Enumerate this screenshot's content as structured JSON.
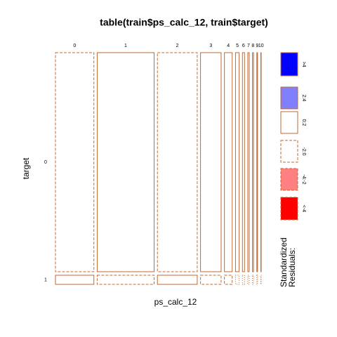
{
  "chart_data": {
    "type": "mosaic",
    "title": "table(train$ps_calc_12, train$target)",
    "x_label": "ps_calc_12",
    "y_label": "target",
    "categories": [
      "0",
      "1",
      "2",
      "3",
      "4",
      "5",
      "6",
      "7",
      "8",
      "9",
      "10"
    ],
    "values": [
      22.2,
      32.9,
      23.0,
      11.9,
      4.5,
      2.1,
      1.2,
      0.8,
      0.6,
      0.4,
      0.2
    ],
    "rows": [
      "0",
      "1"
    ],
    "row_values": [
      96,
      4
    ],
    "color": "#c06a30",
    "cell_borders": [
      [
        "dashed",
        "solid",
        "dashed",
        "solid",
        "solid",
        "solid",
        "solid",
        "solid",
        "solid",
        "solid",
        "solid"
      ],
      [
        "solid",
        "dashed",
        "solid",
        "dashed",
        "dashed",
        "dotted",
        "dotted",
        "dotted",
        "dotted",
        "dotted",
        "dotted"
      ]
    ],
    "legend_title": [
      "Standardized",
      "Residuals:"
    ],
    "legend": [
      {
        "label": ">4",
        "fill": "#0000ff",
        "border": "solid"
      },
      {
        "label": "2:4",
        "fill": "#8080ff",
        "border": "solid"
      },
      {
        "label": "0:2",
        "fill": "#ffffff",
        "border": "solid"
      },
      {
        "label": "-2:0",
        "fill": "#ffffff",
        "border": "dashed"
      },
      {
        "label": "-4:-2",
        "fill": "#ff8080",
        "border": "dashed"
      },
      {
        "label": "<-4",
        "fill": "#ff0000",
        "border": "dashed"
      }
    ]
  }
}
